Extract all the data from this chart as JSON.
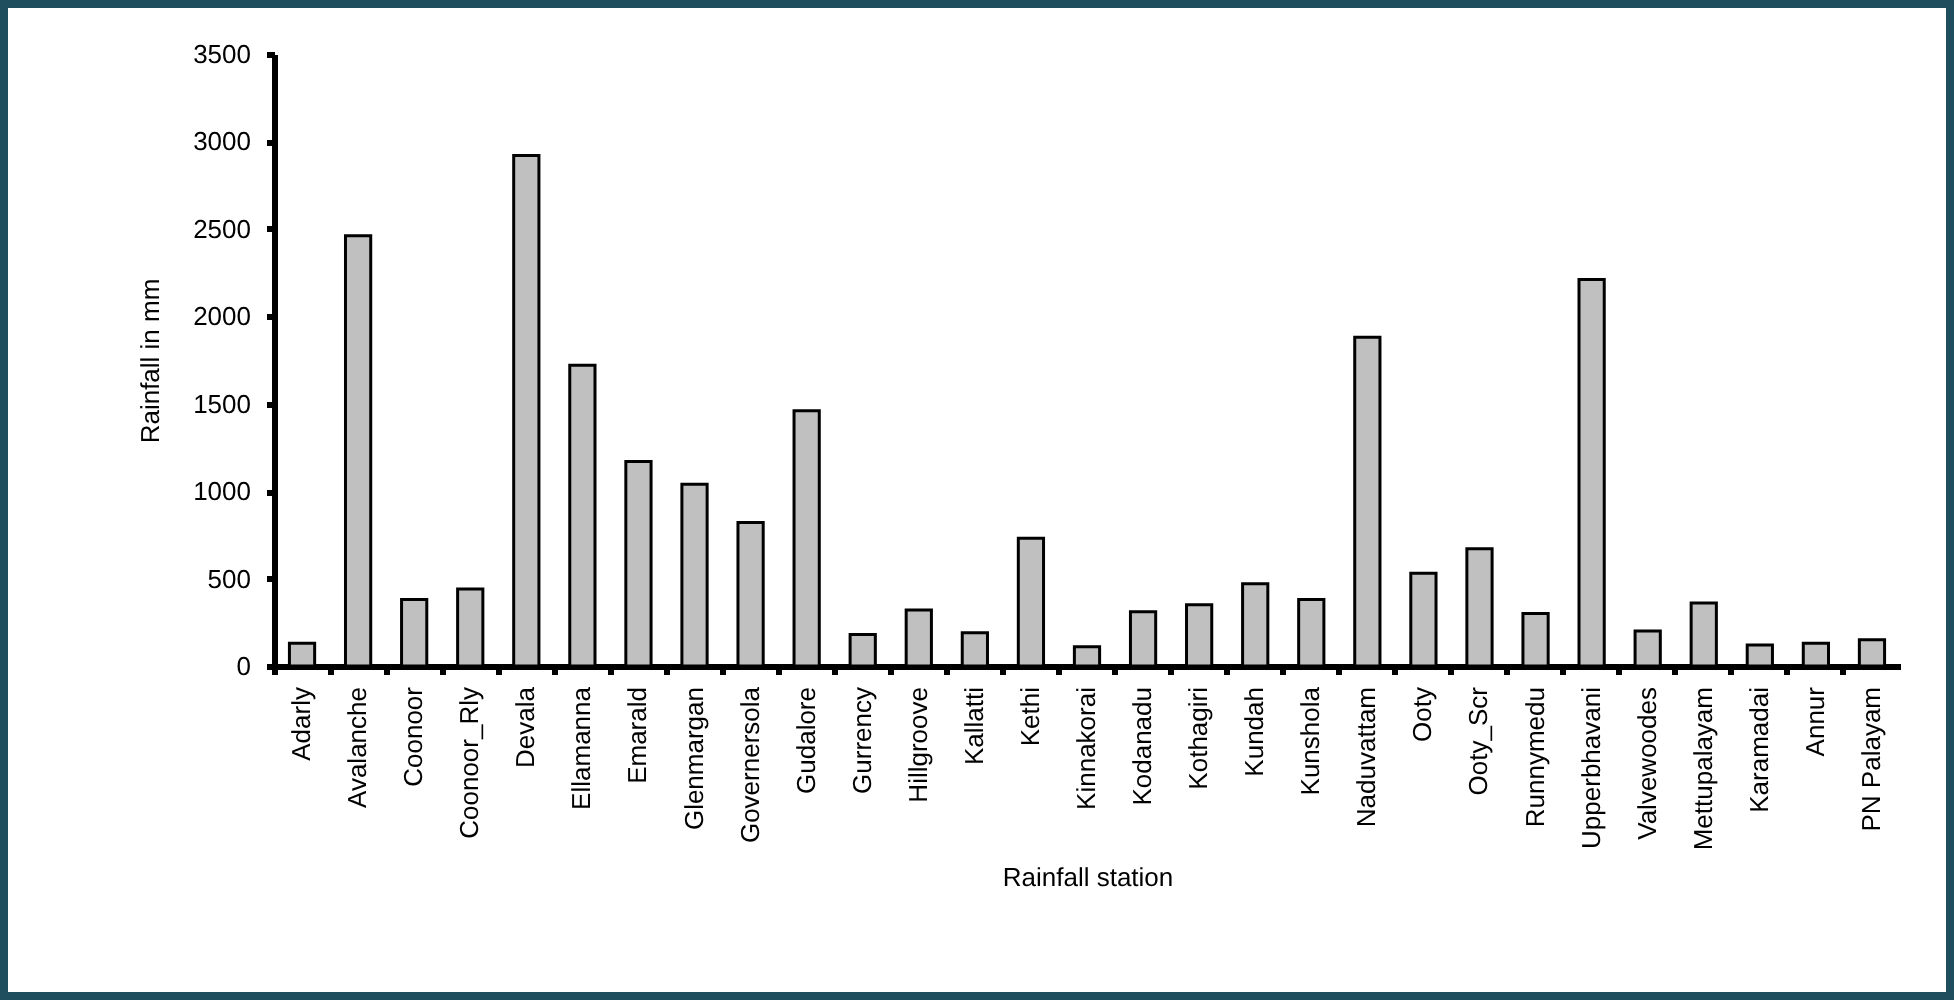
{
  "chart_data": {
    "type": "bar",
    "xlabel": "Rainfall station",
    "ylabel": "Rainfall in mm",
    "categories": [
      "Adarly",
      "Avalanche",
      "Coonoor",
      "Coonoor_Rly",
      "Devala",
      "Ellamanna",
      "Emarald",
      "Glenmargan",
      "Governersola",
      "Gudalore",
      "Gurrency",
      "Hillgroove",
      "Kallatti",
      "Kethi",
      "Kinnakorai",
      "Kodanadu",
      "Kothagiri",
      "Kundah",
      "Kunshola",
      "Naduvattam",
      "Ooty",
      "Ooty_Scr",
      "Runnymedu",
      "Upperbhavani",
      "Valvewoodes",
      "Mettupalayam",
      "Karamadai",
      "Annur",
      "PN Palayam"
    ],
    "values": [
      130,
      2460,
      380,
      440,
      2920,
      1720,
      1170,
      1040,
      820,
      1460,
      180,
      320,
      190,
      730,
      110,
      310,
      350,
      470,
      380,
      1880,
      530,
      670,
      300,
      2210,
      200,
      360,
      120,
      130,
      150
    ],
    "color": "#c0c0c0",
    "ylim": [
      0,
      3500
    ],
    "yticks": [
      0,
      500,
      1000,
      1500,
      2000,
      2500,
      3000,
      3500
    ],
    "grid": false
  }
}
